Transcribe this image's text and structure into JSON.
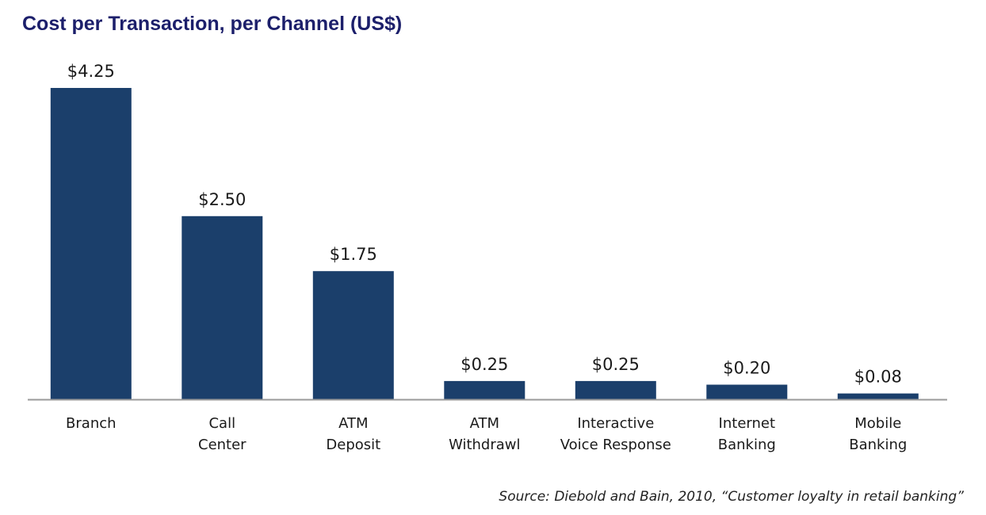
{
  "colors": {
    "bar": "#1b3f6b",
    "title": "#1c1f6b",
    "axis": "#9a9a9a",
    "text": "#1a1a1a"
  },
  "chart_data": {
    "type": "bar",
    "title": "Cost per Transaction, per Channel (US$)",
    "categories": [
      [
        "Branch"
      ],
      [
        "Call",
        "Center"
      ],
      [
        "ATM",
        "Deposit"
      ],
      [
        "ATM",
        "Withdrawl"
      ],
      [
        "Interactive",
        "Voice Response"
      ],
      [
        "Internet",
        "Banking"
      ],
      [
        "Mobile",
        "Banking"
      ]
    ],
    "values": [
      4.25,
      2.5,
      1.75,
      0.25,
      0.25,
      0.2,
      0.08
    ],
    "data_labels": [
      "$4.25",
      "$2.50",
      "$1.75",
      "$0.25",
      "$0.25",
      "$0.20",
      "$0.08"
    ],
    "xlabel": "",
    "ylabel": "",
    "ylim": [
      0,
      4.25
    ],
    "grid": false,
    "legend": "none"
  },
  "source": "Source: Diebold and Bain, 2010, “Customer loyalty in retail banking”"
}
